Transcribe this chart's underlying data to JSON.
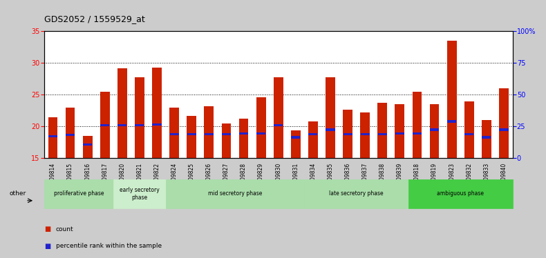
{
  "title": "GDS2052 / 1559529_at",
  "samples": [
    "GSM109814",
    "GSM109815",
    "GSM109816",
    "GSM109817",
    "GSM109820",
    "GSM109821",
    "GSM109822",
    "GSM109824",
    "GSM109825",
    "GSM109826",
    "GSM109827",
    "GSM109828",
    "GSM109829",
    "GSM109830",
    "GSM109831",
    "GSM109834",
    "GSM109835",
    "GSM109836",
    "GSM109837",
    "GSM109838",
    "GSM109839",
    "GSM109818",
    "GSM109819",
    "GSM109823",
    "GSM109832",
    "GSM109833",
    "GSM109840"
  ],
  "count_values": [
    21.5,
    23.0,
    18.5,
    25.5,
    29.2,
    27.8,
    29.3,
    23.0,
    21.7,
    23.2,
    20.5,
    21.2,
    24.6,
    27.8,
    19.4,
    20.8,
    27.8,
    22.7,
    22.2,
    23.7,
    23.5,
    25.5,
    23.5,
    33.5,
    24.0,
    21.0,
    26.0
  ],
  "percentile_dot_heights": [
    18.5,
    18.7,
    17.2,
    20.2,
    20.2,
    20.2,
    20.3,
    18.8,
    18.8,
    18.8,
    18.8,
    18.9,
    18.9,
    20.2,
    18.3,
    18.8,
    19.5,
    18.8,
    18.8,
    18.8,
    18.9,
    18.9,
    19.5,
    20.8,
    18.8,
    18.3,
    19.5
  ],
  "ylim_left": [
    15,
    35
  ],
  "ylim_right": [
    0,
    100
  ],
  "yticks_left": [
    15,
    20,
    25,
    30,
    35
  ],
  "yticks_right": [
    0,
    25,
    50,
    75,
    100
  ],
  "bar_color": "#cc2200",
  "dot_color": "#2222cc",
  "bar_width": 0.55,
  "phase_groups": [
    {
      "label": "proliferative phase",
      "start": 0,
      "end": 3,
      "color": "#aaddaa"
    },
    {
      "label": "early secretory\nphase",
      "start": 4,
      "end": 6,
      "color": "#cceecc"
    },
    {
      "label": "mid secretory phase",
      "start": 7,
      "end": 14,
      "color": "#aaddaa"
    },
    {
      "label": "late secretory phase",
      "start": 15,
      "end": 20,
      "color": "#aaddaa"
    },
    {
      "label": "ambiguous phase",
      "start": 21,
      "end": 26,
      "color": "#44cc44"
    }
  ],
  "legend_count_label": "count",
  "legend_pct_label": "percentile rank within the sample",
  "background_color": "#cccccc",
  "plot_bg_color": "#ffffff",
  "hline_ticks": [
    20,
    25,
    30
  ]
}
